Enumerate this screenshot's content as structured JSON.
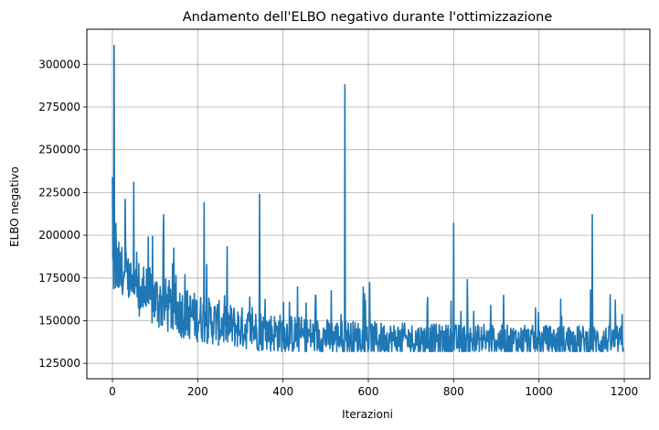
{
  "chart_data": {
    "type": "line",
    "title": "Andamento dell'ELBO negativo durante l'ottimizzazione",
    "xlabel": "Iterazioni",
    "ylabel": "ELBO negativo",
    "xlim": [
      -60,
      1260
    ],
    "ylim": [
      116000,
      320500
    ],
    "xticks": [
      0,
      200,
      400,
      600,
      800,
      1000,
      1200
    ],
    "yticks": [
      125000,
      150000,
      175000,
      200000,
      225000,
      250000,
      275000,
      300000
    ],
    "grid": true,
    "colors": {
      "series": "#1f77b4",
      "grid": "#b0b0b0",
      "axes": "#000000"
    },
    "series": [
      {
        "n_points": 1200,
        "anchors": [
          [
            0,
            234000
          ],
          [
            2,
            185000
          ],
          [
            4,
            311000
          ],
          [
            6,
            175000
          ],
          [
            8,
            207000
          ],
          [
            10,
            165000
          ],
          [
            20,
            183000
          ],
          [
            30,
            221000
          ],
          [
            50,
            231000
          ],
          [
            60,
            178000
          ],
          [
            100,
            165000
          ],
          [
            120,
            212000
          ],
          [
            150,
            160000
          ],
          [
            200,
            158000
          ],
          [
            215,
            219000
          ],
          [
            250,
            152000
          ],
          [
            300,
            150000
          ],
          [
            345,
            224000
          ],
          [
            400,
            147000
          ],
          [
            500,
            144000
          ],
          [
            545,
            288000
          ],
          [
            600,
            143000
          ],
          [
            700,
            142000
          ],
          [
            800,
            207000
          ],
          [
            810,
            141000
          ],
          [
            900,
            140000
          ],
          [
            1000,
            140000
          ],
          [
            1100,
            139000
          ],
          [
            1125,
            212000
          ],
          [
            1200,
            138000
          ]
        ],
        "y_min": 132000,
        "y_max": 311000
      }
    ]
  }
}
